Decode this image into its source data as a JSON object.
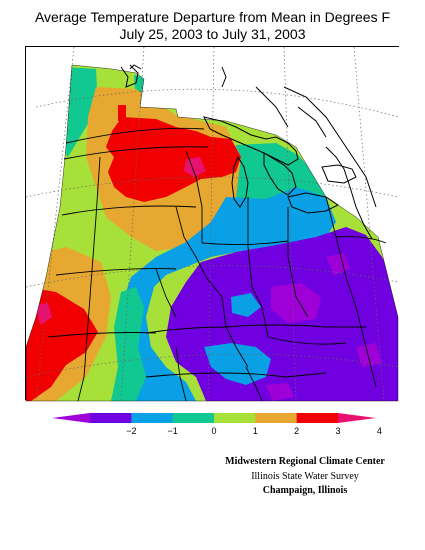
{
  "title": {
    "line1": "Average Temperature Departure from Mean in Degrees F",
    "line2": "July 25, 2003 to July 31, 2003"
  },
  "legend": {
    "tick_labels": [
      "−2",
      "−1",
      "0",
      "1",
      "2",
      "3",
      "4"
    ],
    "bins": [
      {
        "color": "#a000d8"
      },
      {
        "color": "#7000e0"
      },
      {
        "color": "#0aa0e6"
      },
      {
        "color": "#10c890"
      },
      {
        "color": "#a8e03a"
      },
      {
        "color": "#e6a830"
      },
      {
        "color": "#f00000"
      },
      {
        "color": "#e81070"
      }
    ]
  },
  "colors": {
    "le_neg2": "#a000d8",
    "neg2_neg1": "#7000e0",
    "neg1_0": "#0aa0e6",
    "zero_1": "#10c890",
    "one_2": "#a8e03a",
    "two_3": "#e6a830",
    "three_4": "#f00000",
    "ge_4": "#e81070"
  },
  "credits": {
    "line1": "Midwestern Regional Climate Center",
    "line2": "Illinois State Water Survey",
    "line3": "Champaign, Illinois"
  }
}
